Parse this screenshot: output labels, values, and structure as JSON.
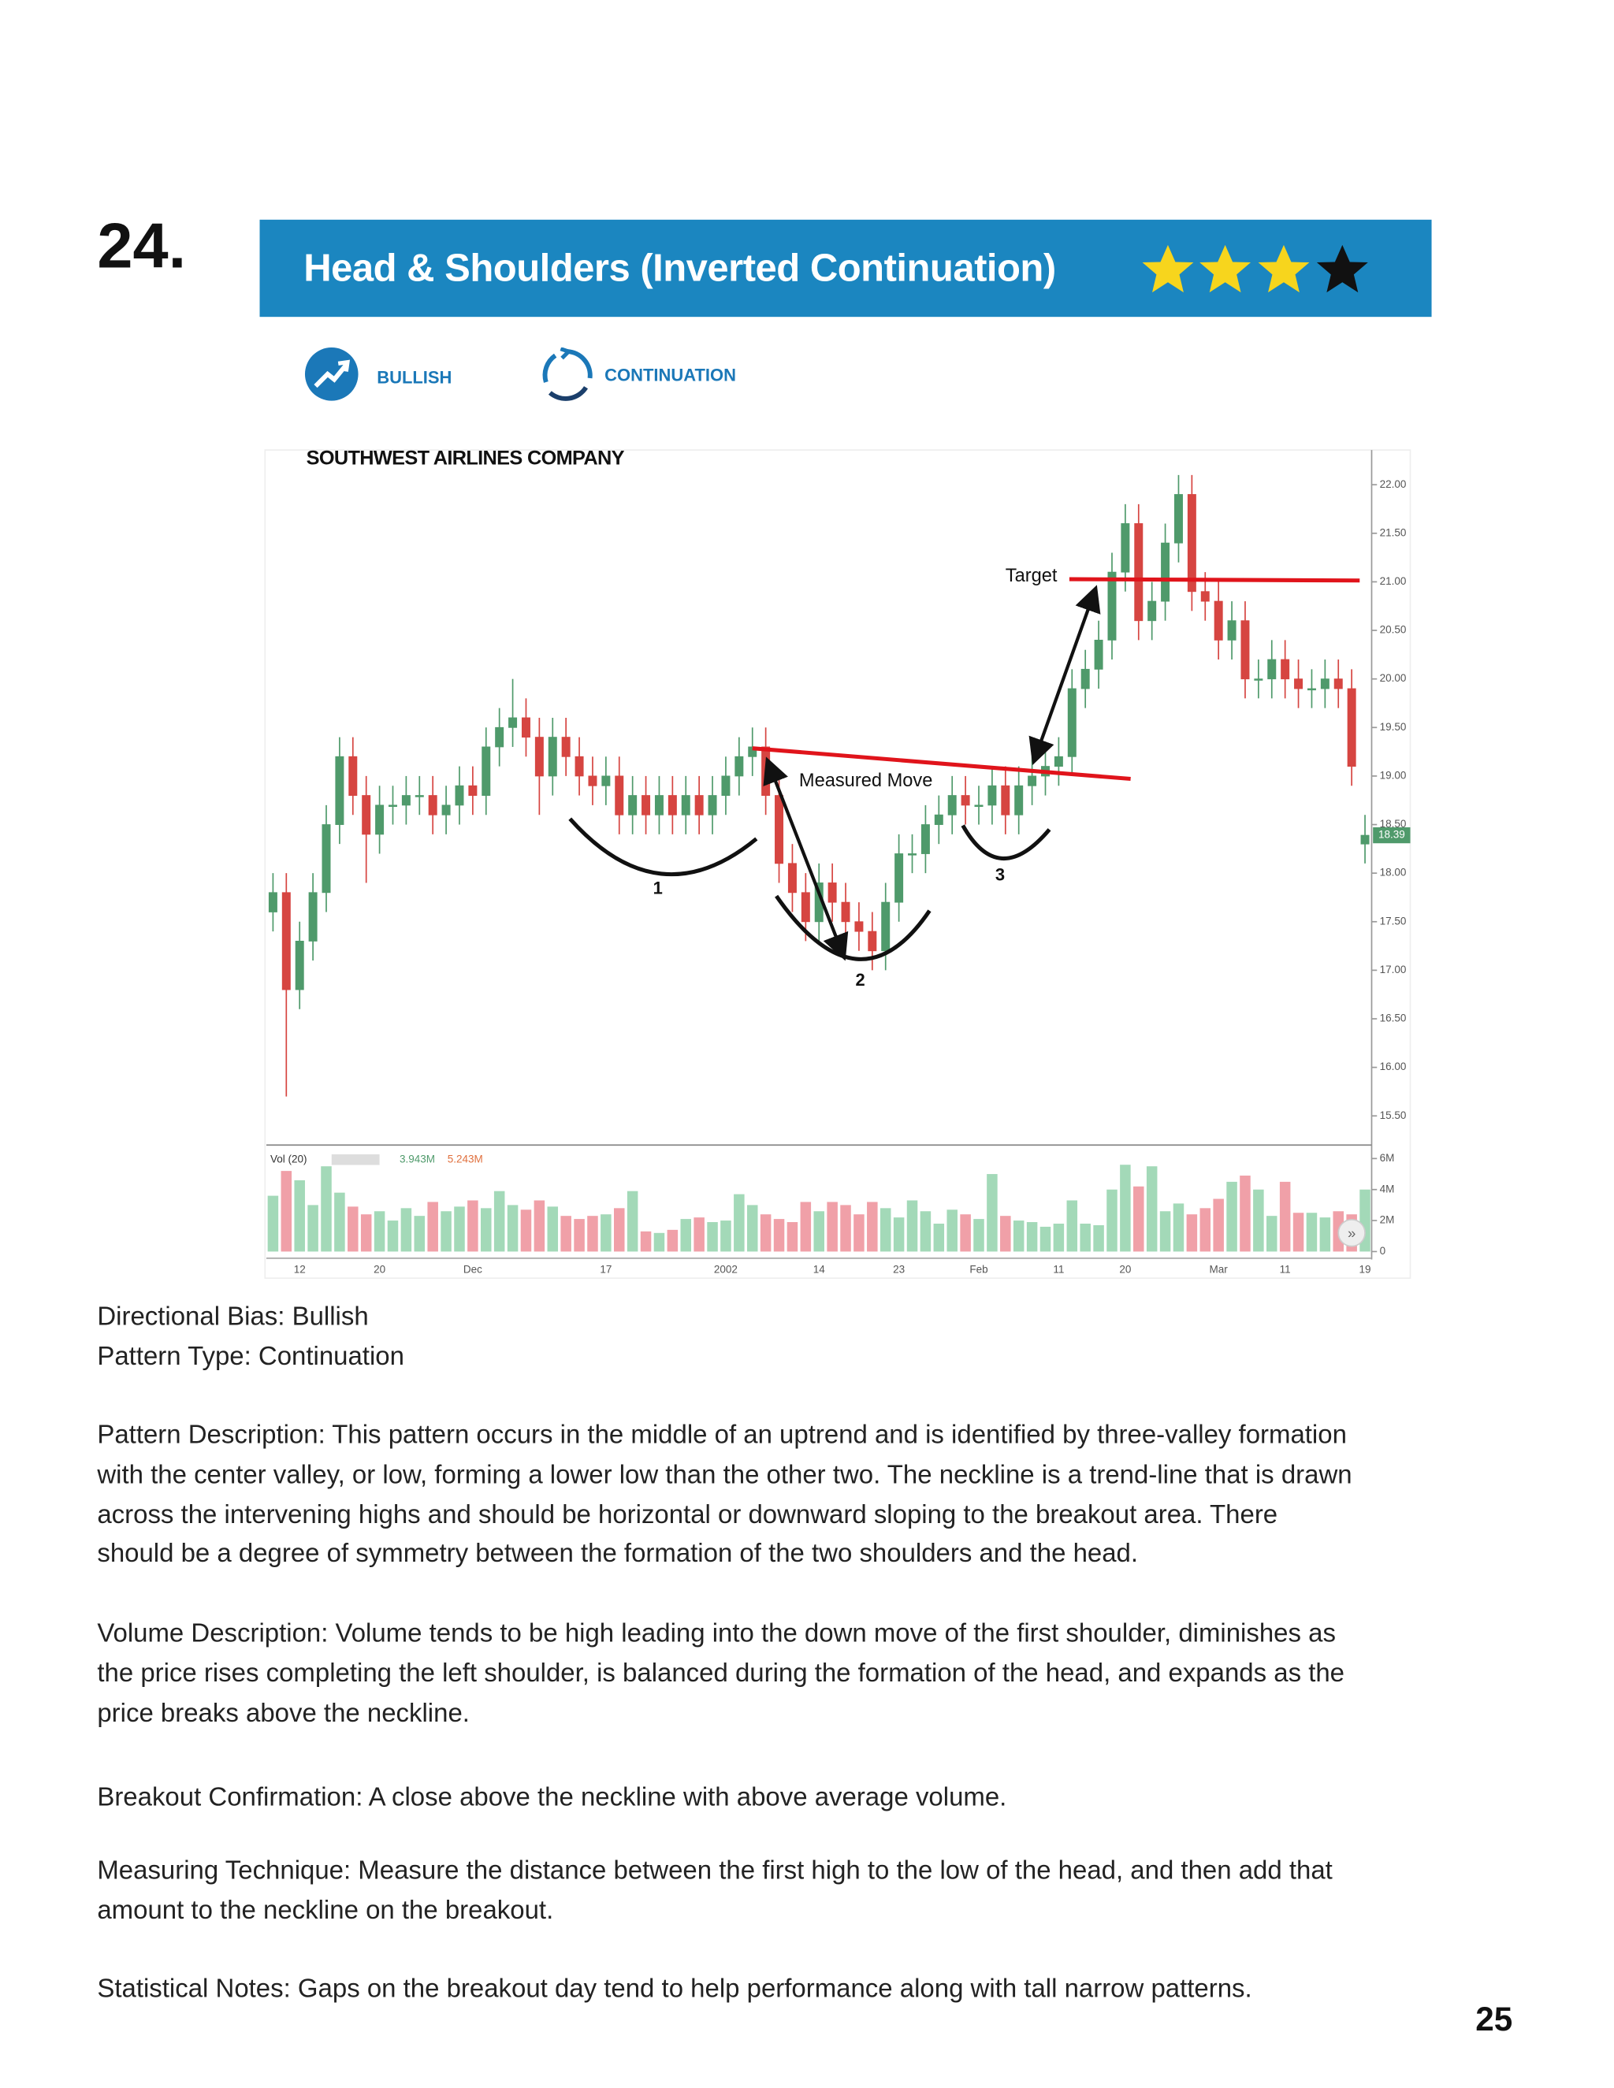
{
  "page_label": "24.",
  "header": {
    "title": "Head & Shoulders (Inverted Continuation)"
  },
  "badges": [
    "BULLISH",
    "CONTINUATION"
  ],
  "chart_data": {
    "type": "candlestick",
    "title": "SOUTHWEST AIRLINES COMPANY",
    "categories": [
      null,
      null,
      "12",
      null,
      null,
      null,
      null,
      null,
      "20",
      null,
      null,
      null,
      null,
      null,
      null,
      "Dec",
      null,
      null,
      null,
      null,
      null,
      null,
      null,
      null,
      null,
      "17",
      null,
      null,
      null,
      null,
      null,
      null,
      null,
      null,
      "2002",
      null,
      null,
      null,
      null,
      null,
      null,
      "14",
      null,
      null,
      null,
      null,
      null,
      "23",
      null,
      null,
      null,
      null,
      null,
      "Feb",
      null,
      null,
      null,
      null,
      null,
      "11",
      null,
      null,
      null,
      null,
      "20",
      null,
      null,
      null,
      null,
      null,
      null,
      "Mar",
      null,
      null,
      null,
      null,
      "11",
      null,
      null,
      null,
      null,
      null,
      "19"
    ],
    "open": [
      17.6,
      17.8,
      16.8,
      17.3,
      17.8,
      18.5,
      19.2,
      18.8,
      18.4,
      18.7,
      18.7,
      18.8,
      18.8,
      18.6,
      18.7,
      18.9,
      18.8,
      19.3,
      19.5,
      19.6,
      19.4,
      19.0,
      19.4,
      19.2,
      19.0,
      18.9,
      19.0,
      18.6,
      18.8,
      18.6,
      18.8,
      18.6,
      18.8,
      18.6,
      18.8,
      19.0,
      19.2,
      19.3,
      18.8,
      18.1,
      17.8,
      17.5,
      17.9,
      17.7,
      17.5,
      17.4,
      17.2,
      17.7,
      18.2,
      18.2,
      18.5,
      18.6,
      18.8,
      18.7,
      18.7,
      18.9,
      18.6,
      18.9,
      19.0,
      19.1,
      19.2,
      19.9,
      20.1,
      20.4,
      21.1,
      21.6,
      20.6,
      20.8,
      21.4,
      21.9,
      20.9,
      20.8,
      20.4,
      20.6,
      20.0,
      20.0,
      20.2,
      20.0,
      19.9,
      19.9,
      20.0,
      19.9,
      18.3
    ],
    "high": [
      18.0,
      18.0,
      17.5,
      18.0,
      18.7,
      19.4,
      19.4,
      19.0,
      18.9,
      18.9,
      19.0,
      19.0,
      19.0,
      18.9,
      19.1,
      19.1,
      19.5,
      19.7,
      20.0,
      19.8,
      19.6,
      19.6,
      19.6,
      19.4,
      19.2,
      19.2,
      19.2,
      19.0,
      19.0,
      19.0,
      19.0,
      19.0,
      19.0,
      19.0,
      19.2,
      19.4,
      19.5,
      19.5,
      19.0,
      18.3,
      18.0,
      18.1,
      18.1,
      17.9,
      17.7,
      17.6,
      17.9,
      18.4,
      18.4,
      18.7,
      18.8,
      19.0,
      19.0,
      18.9,
      19.1,
      19.1,
      19.1,
      19.2,
      19.3,
      19.4,
      20.1,
      20.3,
      20.6,
      21.3,
      21.8,
      21.8,
      21.0,
      21.6,
      22.1,
      22.1,
      21.1,
      21.0,
      20.8,
      20.8,
      20.2,
      20.4,
      20.4,
      20.2,
      20.1,
      20.2,
      20.2,
      20.1,
      18.6
    ],
    "low": [
      17.4,
      15.7,
      16.6,
      17.1,
      17.6,
      18.3,
      18.6,
      17.9,
      18.2,
      18.5,
      18.5,
      18.6,
      18.4,
      18.4,
      18.5,
      18.6,
      18.6,
      19.1,
      19.3,
      19.2,
      18.6,
      18.8,
      19.0,
      18.8,
      18.7,
      18.7,
      18.4,
      18.4,
      18.4,
      18.4,
      18.4,
      18.4,
      18.4,
      18.4,
      18.6,
      18.8,
      19.0,
      18.6,
      17.9,
      17.6,
      17.3,
      17.3,
      17.5,
      17.3,
      17.2,
      17.0,
      17.0,
      17.5,
      18.0,
      18.0,
      18.3,
      18.4,
      18.5,
      18.5,
      18.5,
      18.4,
      18.4,
      18.7,
      18.8,
      18.9,
      19.0,
      19.7,
      19.9,
      20.2,
      20.9,
      20.4,
      20.4,
      20.6,
      21.2,
      20.7,
      20.6,
      20.2,
      20.2,
      19.8,
      19.8,
      19.8,
      19.8,
      19.7,
      19.7,
      19.7,
      19.7,
      18.9,
      18.1
    ],
    "close": [
      17.8,
      16.8,
      17.3,
      17.8,
      18.5,
      19.2,
      18.8,
      18.4,
      18.7,
      18.7,
      18.8,
      18.8,
      18.6,
      18.7,
      18.9,
      18.8,
      19.3,
      19.5,
      19.6,
      19.4,
      19.0,
      19.4,
      19.2,
      19.0,
      18.9,
      19.0,
      18.6,
      18.8,
      18.6,
      18.8,
      18.6,
      18.8,
      18.6,
      18.8,
      19.0,
      19.2,
      19.3,
      18.8,
      18.1,
      17.8,
      17.5,
      17.9,
      17.7,
      17.5,
      17.4,
      17.2,
      17.7,
      18.2,
      18.2,
      18.5,
      18.6,
      18.8,
      18.7,
      18.7,
      18.9,
      18.6,
      18.9,
      19.0,
      19.1,
      19.2,
      19.9,
      20.1,
      20.4,
      21.1,
      21.6,
      20.6,
      20.8,
      21.4,
      21.9,
      20.9,
      20.8,
      20.4,
      20.6,
      20.0,
      20.0,
      20.2,
      20.0,
      19.9,
      19.9,
      20.0,
      19.9,
      19.1,
      18.39
    ],
    "up_color": "#4f9a6b",
    "down_color": "#d64541",
    "ylim": [
      15.2,
      22.33
    ],
    "yticks": [
      {
        "value": 15.5,
        "label": "15.50"
      },
      {
        "value": 16,
        "label": "16.00"
      },
      {
        "value": 16.5,
        "label": "16.50"
      },
      {
        "value": 17,
        "label": "17.00"
      },
      {
        "value": 17.5,
        "label": "17.50"
      },
      {
        "value": 18,
        "label": "18.00"
      },
      {
        "value": 18.5,
        "label": "18.50"
      },
      {
        "value": 19,
        "label": "19.00"
      },
      {
        "value": 19.5,
        "label": "19.50"
      },
      {
        "value": 20,
        "label": "20.00"
      },
      {
        "value": 20.5,
        "label": "20.50"
      },
      {
        "value": 21,
        "label": "21.00"
      },
      {
        "value": 21.5,
        "label": "21.50"
      },
      {
        "value": 22,
        "label": "22.00"
      }
    ],
    "last_price": 18.39,
    "volume": {
      "name": "Vol (20)",
      "values": [
        3.6,
        5.2,
        4.6,
        3.0,
        5.5,
        3.8,
        2.9,
        2.4,
        2.6,
        2.0,
        2.8,
        2.3,
        3.2,
        2.6,
        2.9,
        3.3,
        2.8,
        3.9,
        3.0,
        2.7,
        3.3,
        2.9,
        2.3,
        2.1,
        2.3,
        2.4,
        2.8,
        3.9,
        1.3,
        1.2,
        1.4,
        2.1,
        2.2,
        1.9,
        2.0,
        3.7,
        3.0,
        2.4,
        2.1,
        1.9,
        3.2,
        2.6,
        3.2,
        3.0,
        2.4,
        3.2,
        2.8,
        2.2,
        3.3,
        2.6,
        1.8,
        2.7,
        2.4,
        2.1,
        5.0,
        2.3,
        2.0,
        1.9,
        1.6,
        1.8,
        3.3,
        1.8,
        1.7,
        4.0,
        5.6,
        4.2,
        5.5,
        2.6,
        3.1,
        2.4,
        2.8,
        3.4,
        4.5,
        4.9,
        4.0,
        2.3,
        4.5,
        2.5,
        2.5,
        2.2,
        2.6,
        2.4,
        4.0
      ],
      "up_color": "#a3d9b8",
      "down_color": "#f0a0a8",
      "ylim": [
        0,
        6.7
      ],
      "yticks": [
        0,
        {
          "value": 2,
          "label": "2M"
        },
        {
          "value": 4,
          "label": "4M"
        },
        {
          "value": 6,
          "label": "6M"
        }
      ],
      "stats": [
        {
          "label": "3.943M",
          "color": "#4f9a6b"
        },
        {
          "label": "5.243M",
          "color": "#e0703e"
        }
      ]
    },
    "annotations": [
      "Target",
      "Measured Move",
      "1",
      "2",
      "3"
    ]
  },
  "paragraphs": [
    [
      "Directional Bias: Bullish",
      "Pattern Type: Continuation"
    ],
    [
      "Pattern Description: This pattern occurs in the middle of an uptrend and is identified by three-valley formation",
      "with the center valley, or low, forming a lower low than the other two. The neckline is a trend-line that is drawn",
      "across the intervening highs and should be horizontal or downward sloping to the breakout area. There",
      "should be a degree of symmetry between the formation of the two shoulders and the head."
    ],
    [
      "Volume Description: Volume tends to be high leading into the down move of the first shoulder, diminishes as",
      "the price rises completing the left shoulder, is balanced during the formation of the head, and expands as the",
      "price breaks above the neckline."
    ],
    [
      "Breakout Confirmation: A close above the neckline with above average volume."
    ],
    [
      "Measuring Technique: Measure the distance between the first high to the low of the head, and then add that",
      "amount to the neckline on the breakout."
    ],
    [
      "Statistical Notes: Gaps on the breakout day tend to help performance along with tall narrow patterns."
    ]
  ],
  "page_number": "25"
}
